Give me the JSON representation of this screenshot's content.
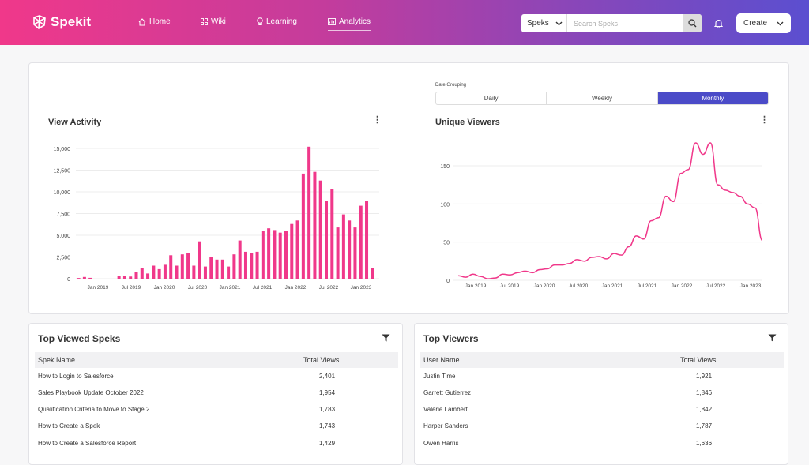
{
  "app": {
    "name": "Spekit"
  },
  "nav": [
    {
      "label": "Home",
      "icon": "home-icon"
    },
    {
      "label": "Wiki",
      "icon": "grid-icon"
    },
    {
      "label": "Learning",
      "icon": "lightbulb-icon"
    },
    {
      "label": "Analytics",
      "icon": "analytics-icon"
    }
  ],
  "search": {
    "scope": "Speks",
    "placeholder": "Search Speks"
  },
  "create_label": "Create",
  "date_grouping": {
    "label": "Date Grouping",
    "options": [
      "Daily",
      "Weekly",
      "Monthly"
    ],
    "selected": "Monthly"
  },
  "colors": {
    "accent": "#f0388a",
    "selected_segment": "#4b4bc8"
  },
  "chart_data": [
    {
      "type": "bar",
      "title": "View Activity",
      "ylim": [
        0,
        15000
      ],
      "yticks": [
        "0",
        "2,500",
        "5,000",
        "7,500",
        "10,000",
        "12,500",
        "15,000"
      ],
      "xticks": [
        "Jan 2019",
        "Jul 2019",
        "Jan 2020",
        "Jul 2020",
        "Jan 2021",
        "Jul 2021",
        "Jan 2022",
        "Jul 2022",
        "Jan 2023"
      ],
      "values": [
        80,
        200,
        100,
        0,
        0,
        0,
        0,
        300,
        350,
        250,
        800,
        1200,
        600,
        1500,
        1100,
        1600,
        2700,
        1500,
        2800,
        3000,
        1500,
        4300,
        1400,
        2500,
        2200,
        2200,
        1400,
        2800,
        4400,
        3100,
        3000,
        3100,
        5500,
        5800,
        5600,
        5300,
        5500,
        6300,
        6700,
        12100,
        15200,
        12300,
        11300,
        9000,
        10300,
        5900,
        7400,
        6700,
        5900,
        8400,
        9000,
        1200
      ]
    },
    {
      "type": "line",
      "title": "Unique Viewers",
      "ylim": [
        0,
        180
      ],
      "yticks": [
        "0",
        "50",
        "100",
        "150"
      ],
      "xticks": [
        "Jan 2019",
        "Jul 2019",
        "Jan 2020",
        "Jul 2020",
        "Jan 2021",
        "Jul 2021",
        "Jan 2022",
        "Jul 2022",
        "Jan 2023"
      ],
      "values": [
        6,
        4,
        8,
        5,
        2,
        3,
        8,
        7,
        10,
        12,
        10,
        14,
        15,
        20,
        20,
        22,
        27,
        25,
        30,
        31,
        28,
        35,
        33,
        44,
        58,
        54,
        78,
        82,
        110,
        103,
        140,
        145,
        180,
        165,
        180,
        125,
        118,
        115,
        110,
        100,
        95,
        52
      ]
    }
  ],
  "top_speks": {
    "title": "Top Viewed Speks",
    "columns": [
      "Spek Name",
      "Total Views"
    ],
    "rows": [
      [
        "How to Login to Salesforce",
        "2,401"
      ],
      [
        "Sales Playbook Update October 2022",
        "1,954"
      ],
      [
        "Qualification Criteria to Move to Stage 2",
        "1,783"
      ],
      [
        "How to Create a Spek",
        "1,743"
      ],
      [
        "How to Create a Salesforce Report",
        "1,429"
      ]
    ]
  },
  "top_viewers": {
    "title": "Top Viewers",
    "columns": [
      "User Name",
      "Total Views"
    ],
    "rows": [
      [
        "Justin Time",
        "1,921"
      ],
      [
        "Garrett Gutierrez",
        "1,846"
      ],
      [
        "Valerie Lambert",
        "1,842"
      ],
      [
        "Harper Sanders",
        "1,787"
      ],
      [
        "Owen Harris",
        "1,636"
      ]
    ]
  }
}
